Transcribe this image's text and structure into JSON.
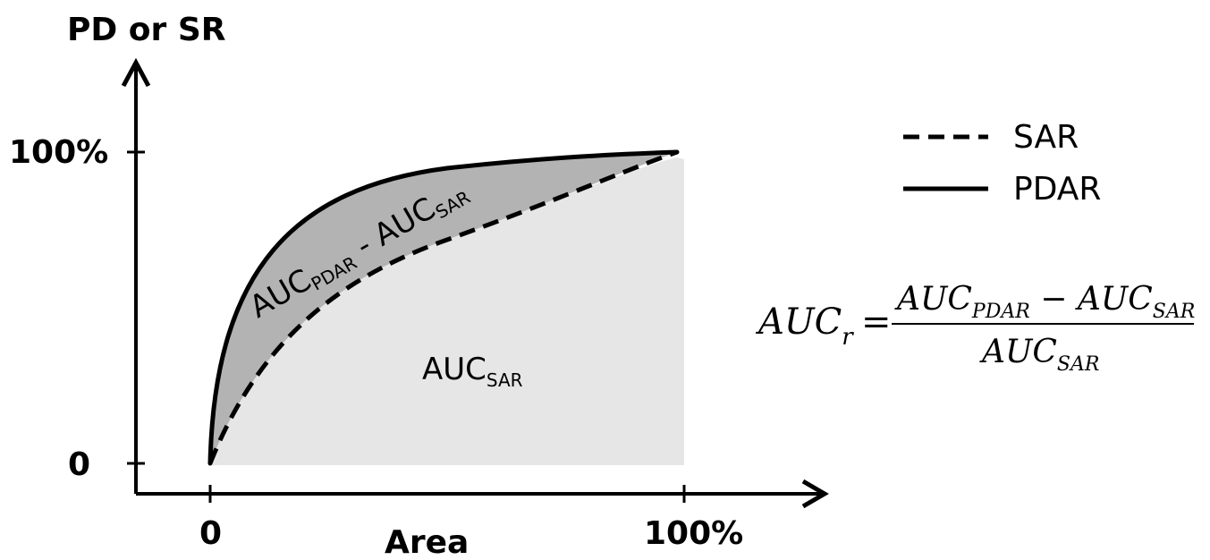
{
  "y_axis": {
    "title": "PD or SR",
    "tick_top": "100%",
    "tick_bottom": "0"
  },
  "x_axis": {
    "title": "Area",
    "tick_left": "0",
    "tick_right": "100%"
  },
  "legend": {
    "items": [
      {
        "label": "SAR",
        "style": "dashed"
      },
      {
        "label": "PDAR",
        "style": "solid"
      }
    ]
  },
  "regions": {
    "difference": {
      "main": "AUC",
      "sub1": "PDAR",
      "minus": " - AUC",
      "sub2": "SAR"
    },
    "sar_area": {
      "main": "AUC",
      "sub": "SAR"
    }
  },
  "formula": {
    "lhs_main": "AUC",
    "lhs_sub": "r",
    "equals": "=",
    "num_a_main": "AUC",
    "num_a_sub": "PDAR",
    "num_minus": "−",
    "num_b_main": "AUC",
    "num_b_sub": "SAR",
    "den_main": "AUC",
    "den_sub": "SAR"
  },
  "colors": {
    "axis": "#000000",
    "pdar_fill": "#b3b3b3",
    "sar_fill": "#e6e6e6",
    "curve": "#000000"
  }
}
